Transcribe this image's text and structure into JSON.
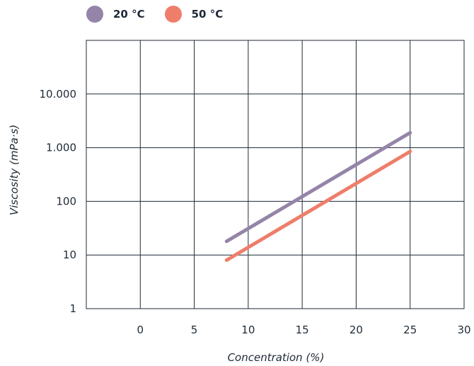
{
  "chart_data": {
    "type": "line",
    "xlabel": "Concentration (%)",
    "ylabel": "Viscosity (mPa·s)",
    "x_scale": "linear",
    "y_scale": "log",
    "xlim": [
      -5,
      30
    ],
    "ylim": [
      1,
      100000
    ],
    "x_ticks": [
      {
        "value": 0,
        "label": "0"
      },
      {
        "value": 5,
        "label": "5"
      },
      {
        "value": 10,
        "label": "10"
      },
      {
        "value": 15,
        "label": "15"
      },
      {
        "value": 20,
        "label": "20"
      },
      {
        "value": 25,
        "label": "25"
      },
      {
        "value": 30,
        "label": "30"
      }
    ],
    "y_ticks": [
      {
        "value": 1,
        "label": "1"
      },
      {
        "value": 10,
        "label": "10"
      },
      {
        "value": 100,
        "label": "100"
      },
      {
        "value": 1000,
        "label": "1.000"
      },
      {
        "value": 10000,
        "label": "10.000"
      },
      {
        "value": 100000,
        "label": ""
      }
    ],
    "grid": true,
    "legend_position": "top-left",
    "series": [
      {
        "name": "20 °C",
        "color": "#9485a8",
        "x": [
          8,
          25
        ],
        "y": [
          18,
          1900
        ]
      },
      {
        "name": "50 °C",
        "color": "#ee7e6a",
        "x": [
          8,
          25
        ],
        "y": [
          8,
          850
        ]
      }
    ]
  }
}
